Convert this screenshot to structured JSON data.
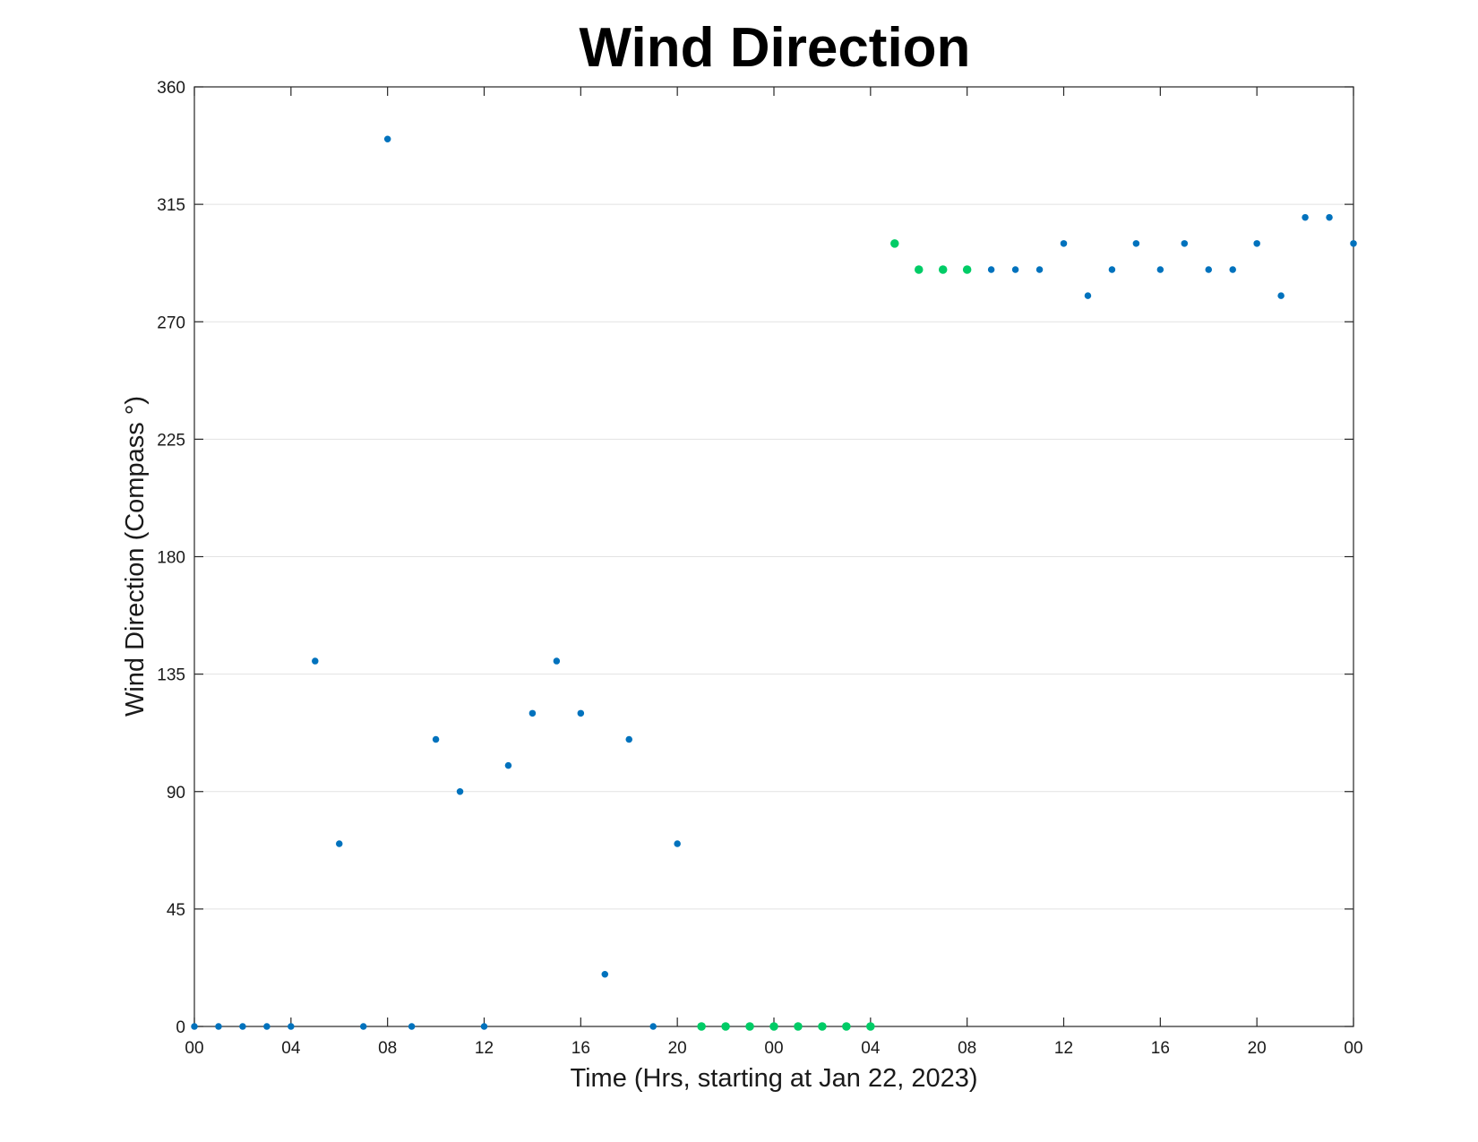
{
  "chart_data": {
    "type": "scatter",
    "title": "Wind Direction",
    "xlabel": "Time (Hrs, starting at Jan 22, 2023)",
    "ylabel": "Wind Direction (Compass °)",
    "x_unit": "hour",
    "xlim": [
      0,
      48
    ],
    "ylim": [
      0,
      360
    ],
    "x_ticks": [
      0,
      4,
      8,
      12,
      16,
      20,
      24,
      28,
      32,
      36,
      40,
      44,
      48
    ],
    "x_tick_labels": [
      "00",
      "04",
      "08",
      "12",
      "16",
      "20",
      "00",
      "04",
      "08",
      "12",
      "16",
      "20",
      "00"
    ],
    "y_ticks": [
      0,
      45,
      90,
      135,
      180,
      225,
      270,
      315,
      360
    ],
    "y_tick_labels": [
      "0",
      "45",
      "90",
      "135",
      "180",
      "225",
      "270",
      "315",
      "360"
    ],
    "grid": "horizontal",
    "series": [
      {
        "color": "#0072BD",
        "marker_size": 7.5,
        "points": [
          [
            0,
            0
          ],
          [
            1,
            0
          ],
          [
            2,
            0
          ],
          [
            3,
            0
          ],
          [
            4,
            0
          ],
          [
            5,
            140
          ],
          [
            6,
            70
          ],
          [
            7,
            0
          ],
          [
            8,
            340
          ],
          [
            9,
            0
          ],
          [
            10,
            110
          ],
          [
            11,
            90
          ],
          [
            12,
            0
          ],
          [
            13,
            100
          ],
          [
            14,
            120
          ],
          [
            15,
            140
          ],
          [
            16,
            120
          ],
          [
            17,
            20
          ],
          [
            18,
            110
          ],
          [
            19,
            0
          ],
          [
            20,
            70
          ],
          [
            33,
            290
          ],
          [
            34,
            290
          ],
          [
            35,
            290
          ],
          [
            36,
            300
          ],
          [
            37,
            280
          ],
          [
            38,
            290
          ],
          [
            39,
            300
          ],
          [
            40,
            290
          ],
          [
            41,
            300
          ],
          [
            42,
            290
          ],
          [
            43,
            290
          ],
          [
            44,
            300
          ],
          [
            45,
            280
          ],
          [
            46,
            310
          ],
          [
            47,
            310
          ],
          [
            48,
            300
          ]
        ]
      },
      {
        "color": "#00CC66",
        "marker_size": 9.5,
        "points": [
          [
            21,
            0
          ],
          [
            22,
            0
          ],
          [
            23,
            0
          ],
          [
            24,
            0
          ],
          [
            25,
            0
          ],
          [
            26,
            0
          ],
          [
            27,
            0
          ],
          [
            28,
            0
          ],
          [
            29,
            300
          ],
          [
            30,
            290
          ],
          [
            31,
            290
          ],
          [
            32,
            290
          ]
        ]
      }
    ]
  }
}
